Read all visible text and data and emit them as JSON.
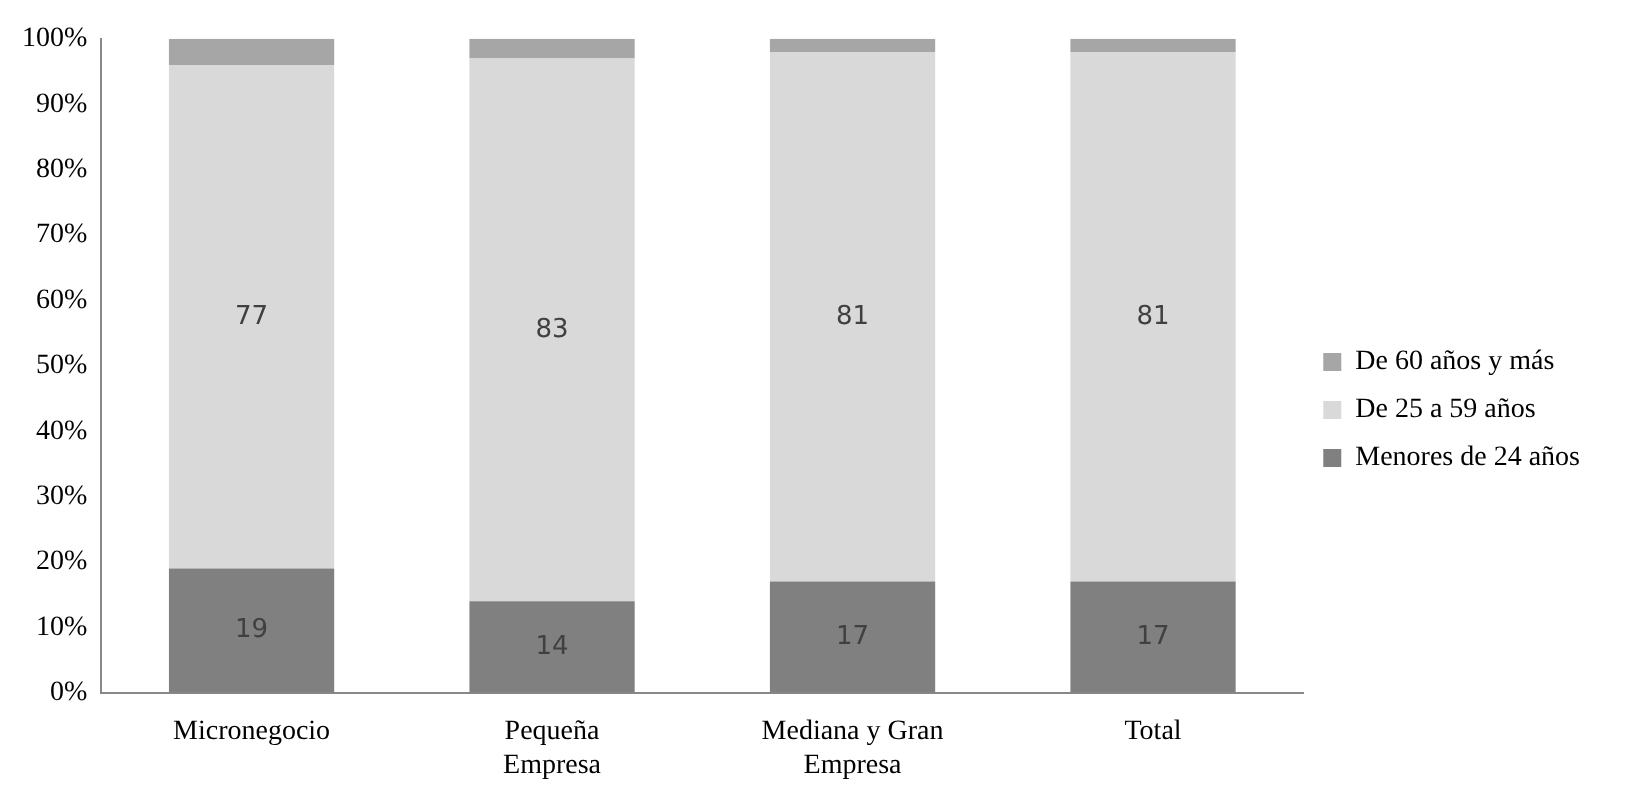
{
  "chart_data": {
    "type": "bar",
    "stacked": true,
    "categories": [
      "Micronegocio",
      "Pequeña Empresa",
      "Mediana y Gran Empresa",
      "Total"
    ],
    "series": [
      {
        "name": "Menores de 24 años",
        "color": "#808080",
        "values": [
          19,
          14,
          17,
          17
        ],
        "value_labels": [
          "19",
          "14",
          "17",
          "17"
        ]
      },
      {
        "name": "De 25 a 59 años",
        "color": "#d9d9d9",
        "values": [
          77,
          83,
          81,
          81
        ],
        "value_labels": [
          "77",
          "83",
          "81",
          "81"
        ]
      },
      {
        "name": "De 60 años y más",
        "color": "#a6a6a6",
        "values": [
          4,
          3,
          2,
          2
        ]
      }
    ],
    "ylim": [
      0,
      100
    ],
    "yticks": [
      {
        "value": 0,
        "label": "0%"
      },
      {
        "value": 10,
        "label": "10%"
      },
      {
        "value": 20,
        "label": "20%"
      },
      {
        "value": 30,
        "label": "30%"
      },
      {
        "value": 40,
        "label": "40%"
      },
      {
        "value": 50,
        "label": "50%"
      },
      {
        "value": 60,
        "label": "60%"
      },
      {
        "value": 70,
        "label": "70%"
      },
      {
        "value": 80,
        "label": "80%"
      },
      {
        "value": 90,
        "label": "90%"
      },
      {
        "value": 100,
        "label": "100%"
      }
    ],
    "grid": false,
    "legend": "right"
  }
}
